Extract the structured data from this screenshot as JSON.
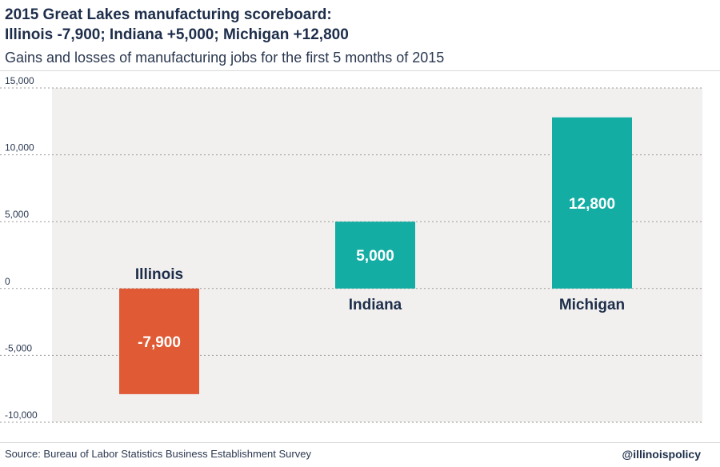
{
  "header": {
    "title_line1": "2015 Great Lakes manufacturing scoreboard:",
    "title_line2": "Illinois -7,900; Indiana +5,000; Michigan +12,800",
    "subtitle": "Gains and losses of manufacturing jobs for the first 5 months of 2015"
  },
  "footer": {
    "source": "Source: Bureau of Labor Statistics Business Establishment Survey",
    "handle": "@illinoispolicy"
  },
  "colors": {
    "negative": "#e05a35",
    "positive": "#13ada4",
    "plot_background": "#f1f0ee",
    "grid": "#9a9a9a",
    "text_dark": "#1d2d4a"
  },
  "chart_data": {
    "type": "bar",
    "categories": [
      "Illinois",
      "Indiana",
      "Michigan"
    ],
    "values": [
      -7900,
      5000,
      12800
    ],
    "value_labels": [
      "-7,900",
      "5,000",
      "12,800"
    ],
    "ylim": [
      -10000,
      15000
    ],
    "yticks": [
      15000,
      10000,
      5000,
      0,
      -5000,
      -10000
    ],
    "ytick_labels": [
      "15,000",
      "10,000",
      "5,000",
      "0",
      "-5,000",
      "-10,000"
    ],
    "grid": "dotted horizontal",
    "legend": "none"
  }
}
